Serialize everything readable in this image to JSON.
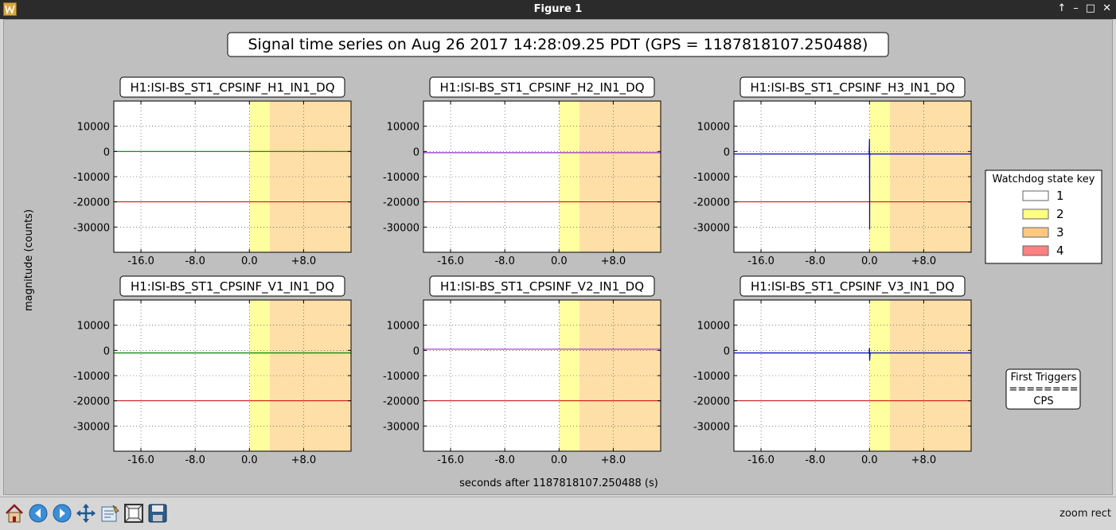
{
  "window": {
    "title": "Figure 1",
    "controls": [
      "↑",
      "–",
      "□",
      "✕"
    ]
  },
  "figure": {
    "suptitle": "Signal time series on Aug 26 2017 14:28:09.25 PDT (GPS = 1187818107.250488)",
    "xlabel": "seconds after 1187818107.250488 (s)",
    "ylabel": "magnitude (counts)"
  },
  "chart_data": [
    {
      "type": "line",
      "title": "H1:ISI-BS_ST1_CPSINF_H1_IN1_DQ",
      "xlim": [
        -20,
        15
      ],
      "ylim": [
        -40000,
        20000
      ],
      "xticks": [
        -16,
        -8,
        0,
        8
      ],
      "xtick_labels": [
        "-16.0",
        "-8.0",
        "0.0",
        "+8.0"
      ],
      "yticks": [
        10000,
        0,
        -10000,
        -20000,
        -30000
      ],
      "ytick_labels": [
        "10000",
        "0",
        "-10000",
        "-20000",
        "-30000"
      ],
      "grid": true,
      "state_regions": [
        {
          "state": 2,
          "start": 0,
          "end": 3
        },
        {
          "state": 3,
          "start": 3,
          "end": 15
        }
      ],
      "threshold": -20000,
      "series": [
        {
          "color": "#008000",
          "x": [
            -20,
            15
          ],
          "y": [
            0,
            0
          ]
        }
      ]
    },
    {
      "type": "line",
      "title": "H1:ISI-BS_ST1_CPSINF_H2_IN1_DQ",
      "xlim": [
        -20,
        15
      ],
      "ylim": [
        -40000,
        20000
      ],
      "xticks": [
        -16,
        -8,
        0,
        8
      ],
      "xtick_labels": [
        "-16.0",
        "-8.0",
        "0.0",
        "+8.0"
      ],
      "yticks": [
        10000,
        0,
        -10000,
        -20000,
        -30000
      ],
      "ytick_labels": [
        "10000",
        "0",
        "-10000",
        "-20000",
        "-30000"
      ],
      "grid": true,
      "state_regions": [
        {
          "state": 2,
          "start": 0,
          "end": 3
        },
        {
          "state": 3,
          "start": 3,
          "end": 15
        }
      ],
      "threshold": -20000,
      "series": [
        {
          "color": "#9932cc",
          "x": [
            -20,
            15
          ],
          "y": [
            -500,
            -500
          ]
        }
      ]
    },
    {
      "type": "line",
      "title": "H1:ISI-BS_ST1_CPSINF_H3_IN1_DQ",
      "xlim": [
        -20,
        15
      ],
      "ylim": [
        -40000,
        20000
      ],
      "xticks": [
        -16,
        -8,
        0,
        8
      ],
      "xtick_labels": [
        "-16.0",
        "-8.0",
        "0.0",
        "+8.0"
      ],
      "yticks": [
        10000,
        0,
        -10000,
        -20000,
        -30000
      ],
      "ytick_labels": [
        "10000",
        "0",
        "-10000",
        "-20000",
        "-30000"
      ],
      "grid": true,
      "state_regions": [
        {
          "state": 2,
          "start": 0,
          "end": 3
        },
        {
          "state": 3,
          "start": 3,
          "end": 15
        }
      ],
      "threshold": -20000,
      "series": [
        {
          "color": "#0000cc",
          "x": [
            -20,
            -0.05,
            0,
            0.02,
            0.04,
            0.1,
            15
          ],
          "y": [
            -1000,
            -1000,
            5000,
            -31000,
            -1500,
            -1000,
            -1000
          ]
        }
      ]
    },
    {
      "type": "line",
      "title": "H1:ISI-BS_ST1_CPSINF_V1_IN1_DQ",
      "xlim": [
        -20,
        15
      ],
      "ylim": [
        -40000,
        20000
      ],
      "xticks": [
        -16,
        -8,
        0,
        8
      ],
      "xtick_labels": [
        "-16.0",
        "-8.0",
        "0.0",
        "+8.0"
      ],
      "yticks": [
        10000,
        0,
        -10000,
        -20000,
        -30000
      ],
      "ytick_labels": [
        "10000",
        "0",
        "-10000",
        "-20000",
        "-30000"
      ],
      "grid": true,
      "state_regions": [
        {
          "state": 2,
          "start": 0,
          "end": 3
        },
        {
          "state": 3,
          "start": 3,
          "end": 15
        }
      ],
      "threshold": -20000,
      "series": [
        {
          "color": "#008000",
          "x": [
            -20,
            15
          ],
          "y": [
            -1000,
            -1000
          ]
        }
      ]
    },
    {
      "type": "line",
      "title": "H1:ISI-BS_ST1_CPSINF_V2_IN1_DQ",
      "xlim": [
        -20,
        15
      ],
      "ylim": [
        -40000,
        20000
      ],
      "xticks": [
        -16,
        -8,
        0,
        8
      ],
      "xtick_labels": [
        "-16.0",
        "-8.0",
        "0.0",
        "+8.0"
      ],
      "yticks": [
        10000,
        0,
        -10000,
        -20000,
        -30000
      ],
      "ytick_labels": [
        "10000",
        "0",
        "-10000",
        "-20000",
        "-30000"
      ],
      "grid": true,
      "state_regions": [
        {
          "state": 2,
          "start": 0,
          "end": 3
        },
        {
          "state": 3,
          "start": 3,
          "end": 15
        }
      ],
      "threshold": -20000,
      "series": [
        {
          "color": "#9932cc",
          "x": [
            -20,
            15
          ],
          "y": [
            500,
            500
          ]
        }
      ]
    },
    {
      "type": "line",
      "title": "H1:ISI-BS_ST1_CPSINF_V3_IN1_DQ",
      "xlim": [
        -20,
        15
      ],
      "ylim": [
        -40000,
        20000
      ],
      "xticks": [
        -16,
        -8,
        0,
        8
      ],
      "xtick_labels": [
        "-16.0",
        "-8.0",
        "0.0",
        "+8.0"
      ],
      "yticks": [
        10000,
        0,
        -10000,
        -20000,
        -30000
      ],
      "ytick_labels": [
        "10000",
        "0",
        "-10000",
        "-20000",
        "-30000"
      ],
      "grid": true,
      "state_regions": [
        {
          "state": 2,
          "start": 0,
          "end": 3
        },
        {
          "state": 3,
          "start": 3,
          "end": 15
        }
      ],
      "threshold": -20000,
      "series": [
        {
          "color": "#0000cc",
          "x": [
            -20,
            -0.05,
            0,
            0.02,
            0.1,
            15
          ],
          "y": [
            -1000,
            -1000,
            1000,
            -4000,
            -1000,
            -1000
          ]
        }
      ]
    }
  ],
  "legend": {
    "title": "Watchdog state key",
    "items": [
      {
        "label": "1",
        "color": "#ffffff"
      },
      {
        "label": "2",
        "color": "#ffff80"
      },
      {
        "label": "3",
        "color": "#ffc880"
      },
      {
        "label": "4",
        "color": "#ff8080"
      }
    ]
  },
  "triggers": {
    "title": "First Triggers",
    "separator": "========",
    "value": "CPS"
  },
  "colors": {
    "state2": "#ffffa0",
    "state3": "#ffdfa8",
    "threshold": "#cc0000"
  },
  "toolbar": {
    "buttons": [
      "home-icon",
      "back-arrow-icon",
      "forward-arrow-icon",
      "pan-icon",
      "configure-subplots-icon",
      "zoom-rect-icon",
      "save-icon"
    ],
    "status": "zoom rect"
  }
}
